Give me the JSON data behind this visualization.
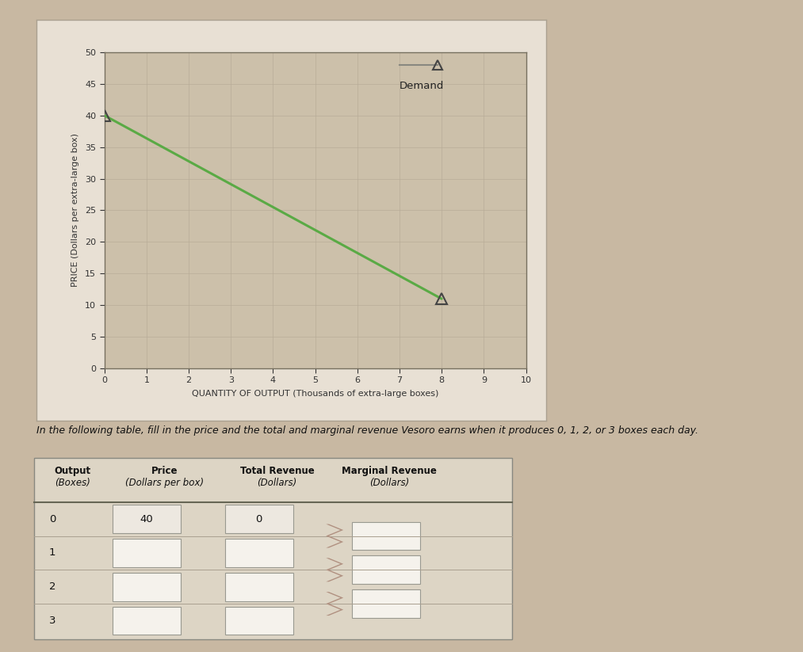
{
  "outer_bg": "#c8b8a2",
  "panel_bg": "#d0c4b0",
  "plot_bg": "#ccc0aa",
  "line_color": "#5aaa45",
  "line_x": [
    0,
    8
  ],
  "line_y": [
    40,
    11
  ],
  "marker_color": "#444444",
  "legend_line_color": "#888880",
  "legend_label": "Demand",
  "xlabel": "QUANTITY OF OUTPUT (Thousands of extra-large boxes)",
  "ylabel": "PRICE (Dollars per extra-large box)",
  "xlim": [
    0,
    10
  ],
  "ylim": [
    0,
    50
  ],
  "xticks": [
    0,
    1,
    2,
    3,
    4,
    5,
    6,
    7,
    8,
    9,
    10
  ],
  "yticks": [
    0,
    5,
    10,
    15,
    20,
    25,
    30,
    35,
    40,
    45,
    50
  ],
  "grid_color": "#b8ac98",
  "axis_color": "#333333",
  "tick_fontsize": 8,
  "label_fontsize": 8,
  "instruction_text": "In the following table, fill in the price and the total and marginal revenue Vesoro earns when it produces 0, 1, 2, or 3 boxes each day.",
  "col_header1": [
    "Output",
    "Price",
    "Total Revenue",
    "Marginal Revenue"
  ],
  "col_header2": [
    "(Boxes)",
    "(Dollars per box)",
    "(Dollars)",
    "(Dollars)"
  ],
  "table_rows": [
    {
      "output": "0",
      "price": "40",
      "total_rev": "0",
      "show_arrow": false
    },
    {
      "output": "1",
      "price": "",
      "total_rev": "",
      "show_arrow": true
    },
    {
      "output": "2",
      "price": "",
      "total_rev": "",
      "show_arrow": true
    },
    {
      "output": "3",
      "price": "",
      "total_rev": "",
      "show_arrow": true
    }
  ],
  "box_filled_bg": "#ede8e0",
  "box_empty_bg": "#f5f2ec",
  "box_border": "#999990",
  "table_bg": "#ddd5c5",
  "arrow_color": "#b09080"
}
